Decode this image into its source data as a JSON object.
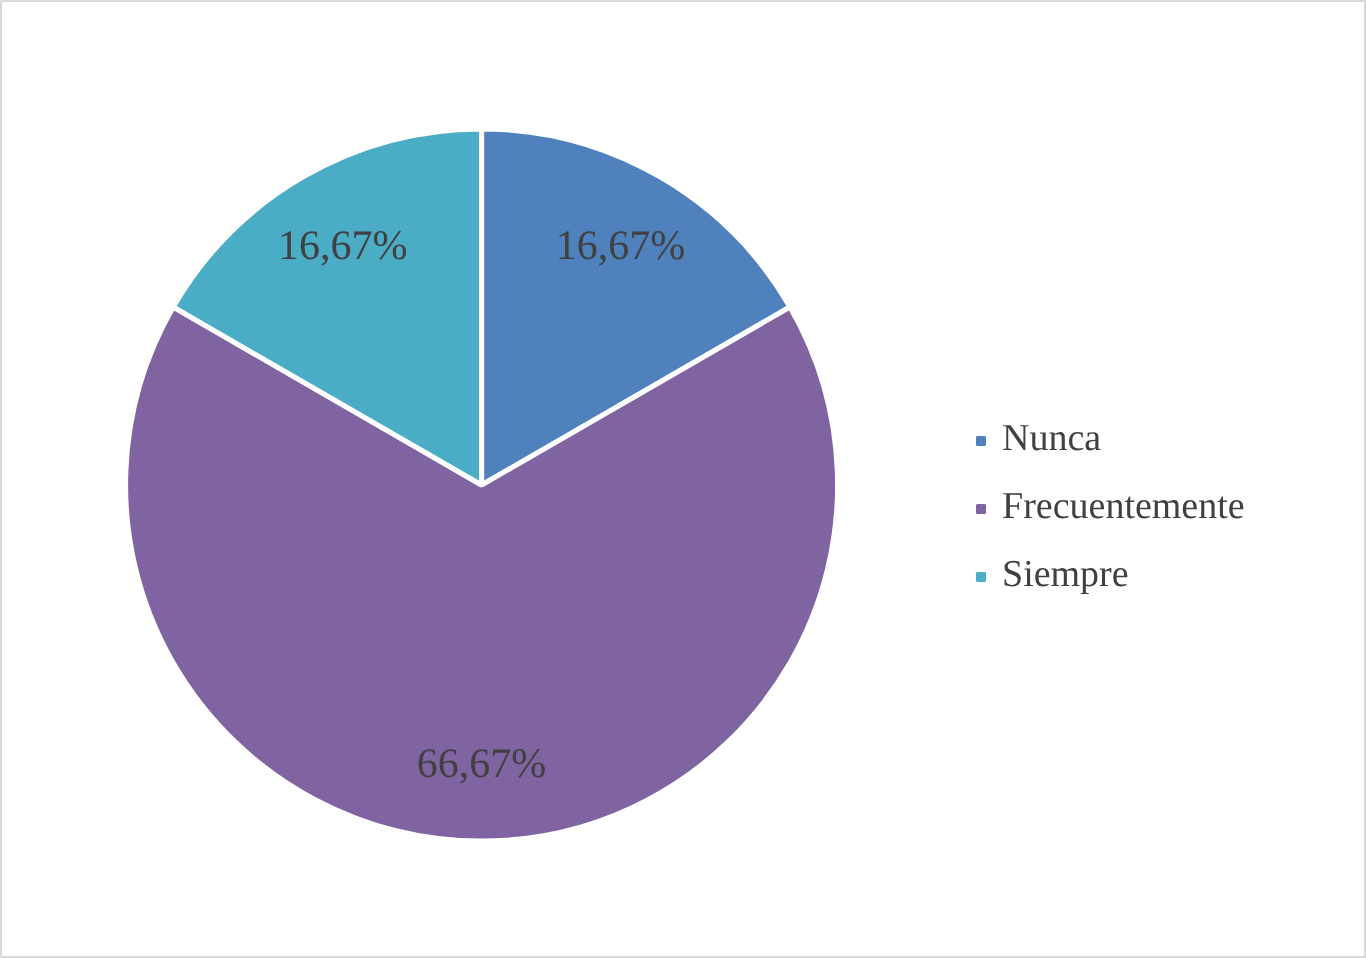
{
  "chart_data": {
    "type": "pie",
    "categories": [
      "Nunca",
      "Frecuentemente",
      "Siempre"
    ],
    "values": [
      16.67,
      66.67,
      16.67
    ],
    "colors": [
      "#4f81bd",
      "#8064a2",
      "#4bacc6"
    ],
    "value_labels": [
      "16,67%",
      "66,67%",
      "16,67%"
    ],
    "legend": "right"
  }
}
